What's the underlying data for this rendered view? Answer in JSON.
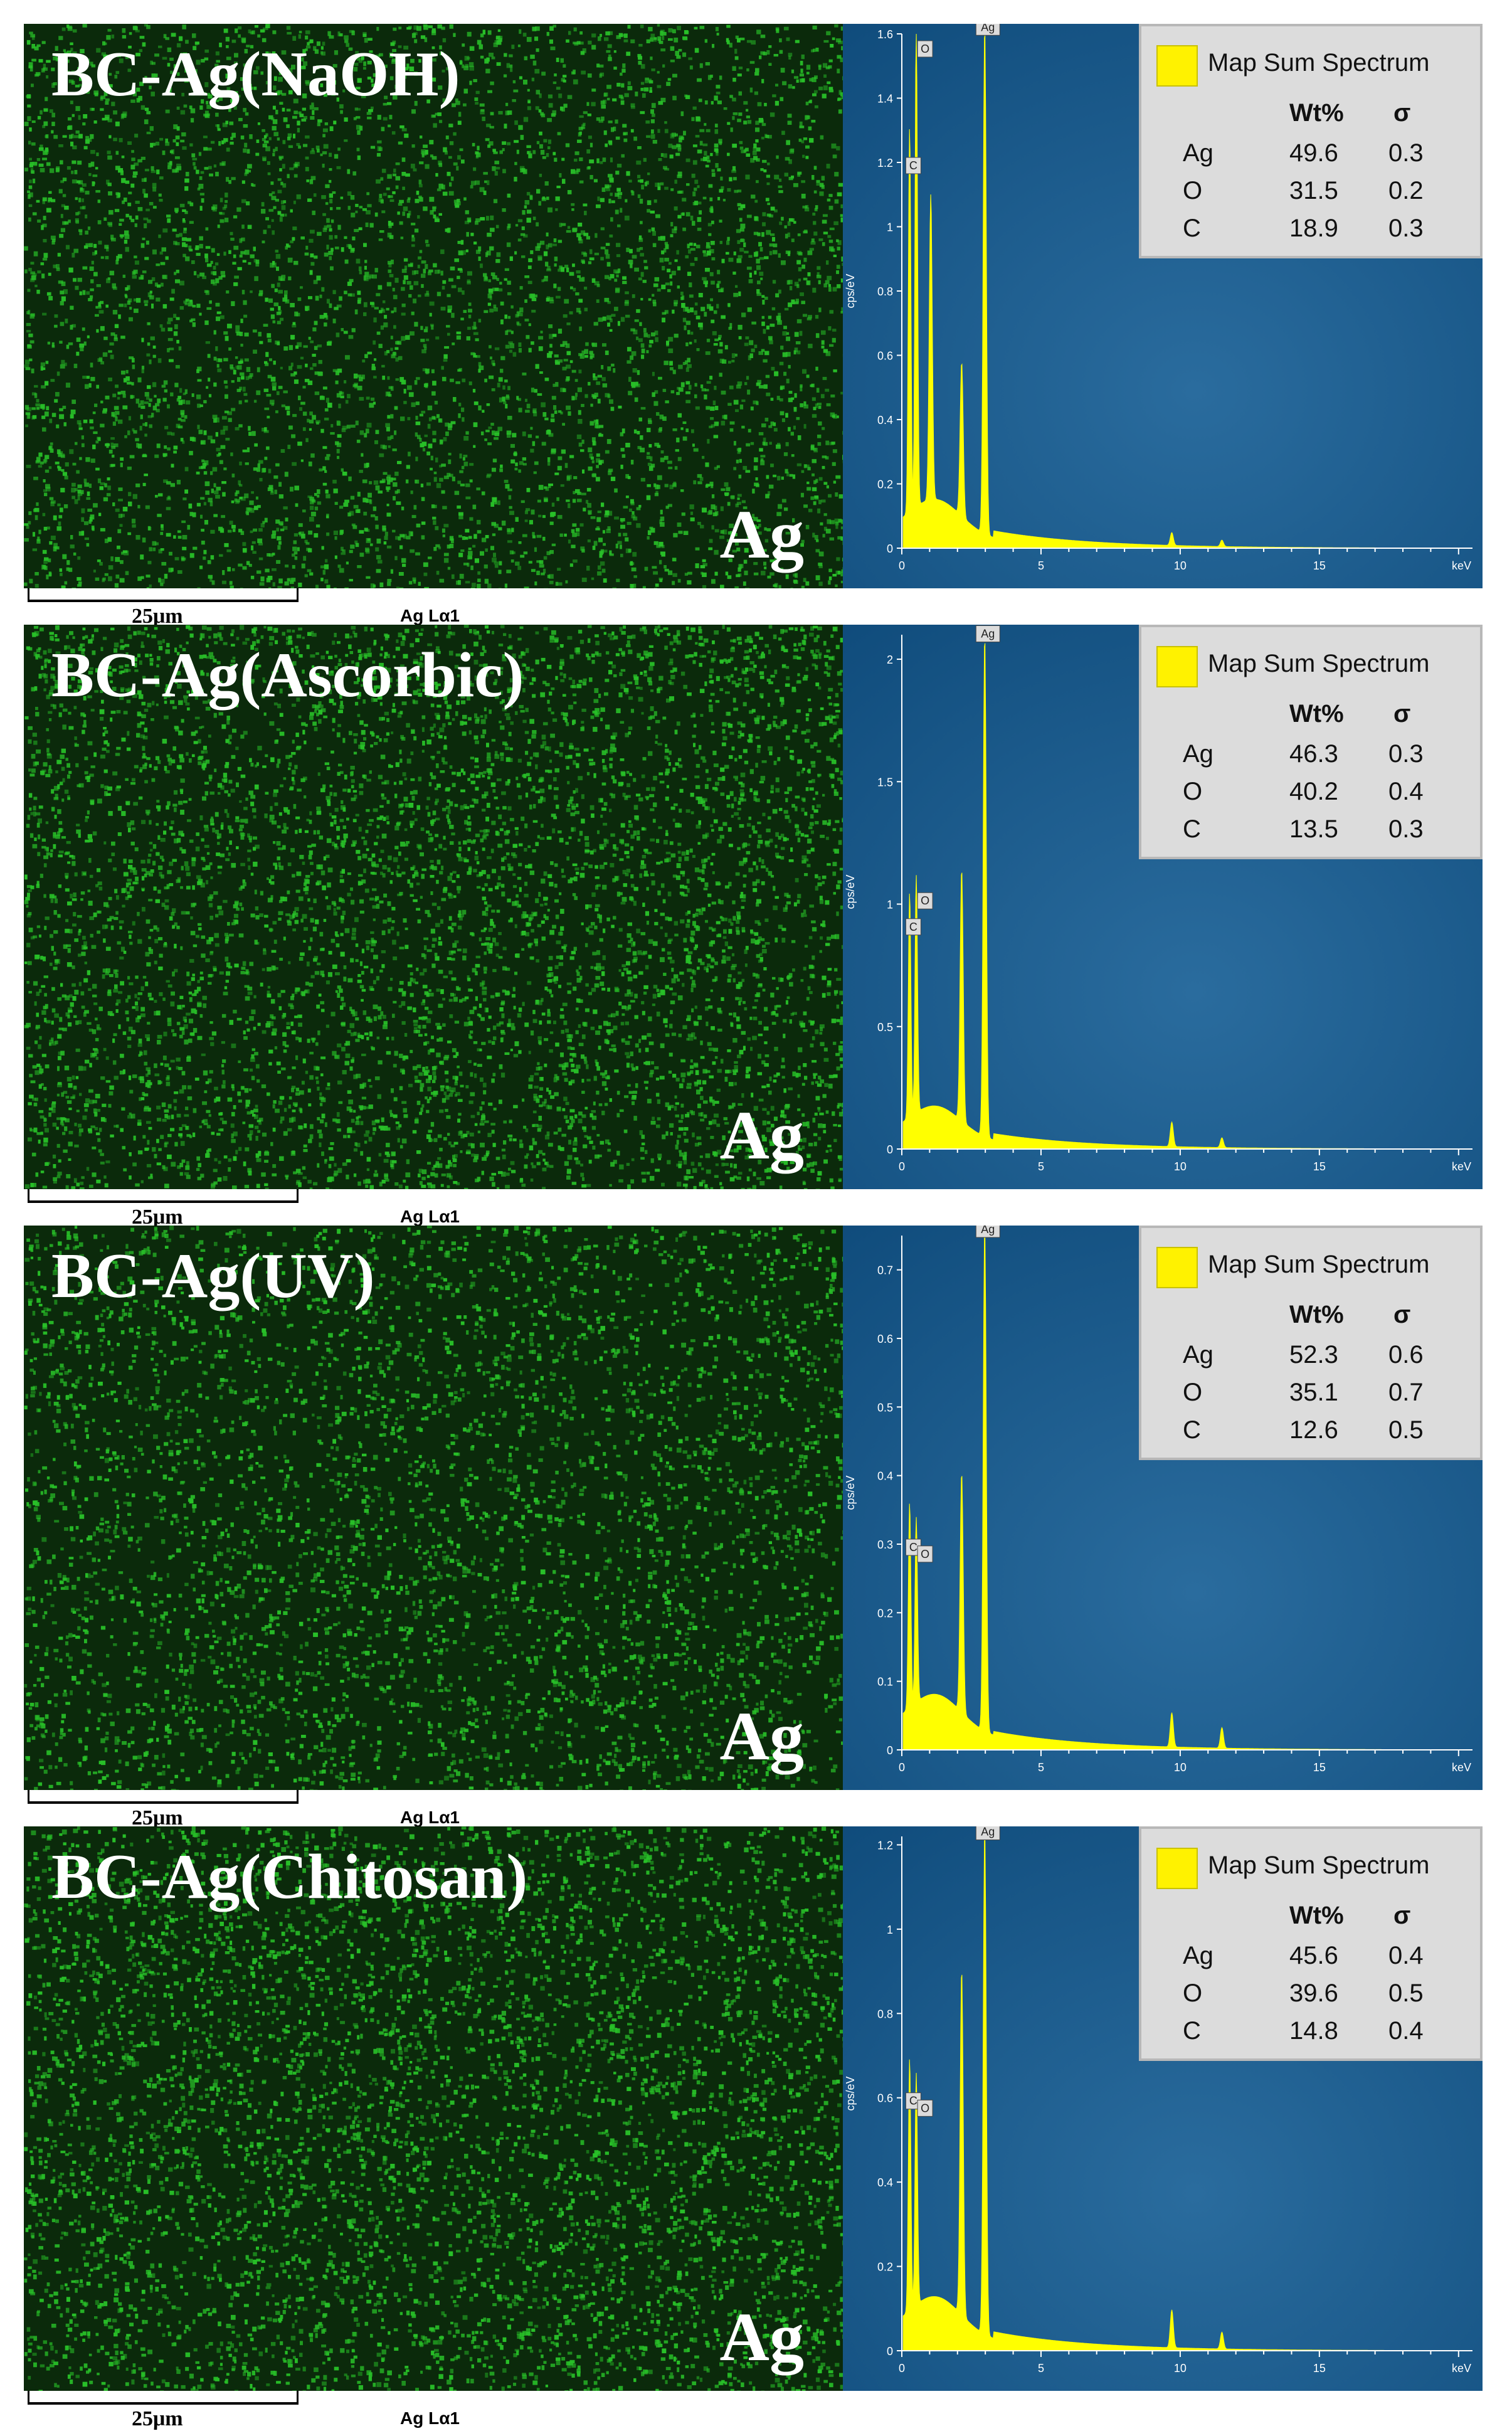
{
  "legend_title": "Map Sum Spectrum",
  "legend_headers": {
    "wt": "Wt%",
    "sigma": "σ"
  },
  "scale_label": "25μm",
  "line_label": "Ag Lα1",
  "map_element": "Ag",
  "axis_ylabel": "cps/eV",
  "axis_unit": "keV",
  "colors": {
    "map_green": "#28c028",
    "map_bg": "#0b2a0b",
    "spectrum_bg": "#0e4a7a",
    "spectrum_fill": "#ffff00",
    "legend_bg": "#dcdcdc"
  },
  "panels": [
    {
      "title": "BC-Ag(NaOH)",
      "rows": [
        {
          "el": "Ag",
          "wt": "49.6",
          "sigma": "0.3"
        },
        {
          "el": "O",
          "wt": "31.5",
          "sigma": "0.2"
        },
        {
          "el": "C",
          "wt": "18.9",
          "sigma": "0.3"
        }
      ]
    },
    {
      "title": "BC-Ag(Ascorbic)",
      "rows": [
        {
          "el": "Ag",
          "wt": "46.3",
          "sigma": "0.3"
        },
        {
          "el": "O",
          "wt": "40.2",
          "sigma": "0.4"
        },
        {
          "el": "C",
          "wt": "13.5",
          "sigma": "0.3"
        }
      ]
    },
    {
      "title": "BC-Ag(UV)",
      "rows": [
        {
          "el": "Ag",
          "wt": "52.3",
          "sigma": "0.6"
        },
        {
          "el": "O",
          "wt": "35.1",
          "sigma": "0.7"
        },
        {
          "el": "C",
          "wt": "12.6",
          "sigma": "0.5"
        }
      ]
    },
    {
      "title": "BC-Ag(Chitosan)",
      "rows": [
        {
          "el": "Ag",
          "wt": "45.6",
          "sigma": "0.4"
        },
        {
          "el": "O",
          "wt": "39.6",
          "sigma": "0.5"
        },
        {
          "el": "C",
          "wt": "14.8",
          "sigma": "0.4"
        }
      ]
    }
  ],
  "chart_data": [
    {
      "type": "area",
      "title": "BC-Ag(NaOH)",
      "xlabel": "keV",
      "ylabel": "cps/eV",
      "xlim": [
        0,
        20.5
      ],
      "ylim": [
        0,
        1.6
      ],
      "xticks": [
        "0",
        "5",
        "10",
        "15"
      ],
      "xtick_values": [
        0,
        5,
        10,
        15
      ],
      "yticks": [
        "0",
        "0.2",
        "0.4",
        "0.6",
        "0.8",
        "1",
        "1.2",
        "1.4",
        "1.6"
      ],
      "ytick_values": [
        0,
        0.2,
        0.4,
        0.6,
        0.8,
        1,
        1.2,
        1.4,
        1.6
      ],
      "peaks": [
        {
          "x": 0.28,
          "y": 1.2,
          "label": "C"
        },
        {
          "x": 0.52,
          "y": 1.52,
          "label": "O"
        },
        {
          "x": 1.04,
          "y": 0.95,
          "label": ""
        },
        {
          "x": 2.15,
          "y": 0.48,
          "label": ""
        },
        {
          "x": 2.98,
          "y": 1.58,
          "label": "Ag"
        },
        {
          "x": 9.7,
          "y": 0.04,
          "label": ""
        },
        {
          "x": 11.5,
          "y": 0.02,
          "label": ""
        }
      ],
      "baseline": 0.12
    },
    {
      "type": "area",
      "title": "BC-Ag(Ascorbic)",
      "xlabel": "keV",
      "ylabel": "cps/eV",
      "xlim": [
        0,
        20.5
      ],
      "ylim": [
        0,
        2.1
      ],
      "xticks": [
        "0",
        "5",
        "10",
        "15"
      ],
      "xtick_values": [
        0,
        5,
        10,
        15
      ],
      "yticks": [
        "0",
        "0.5",
        "1",
        "1.5",
        "2"
      ],
      "ytick_values": [
        0,
        0.5,
        1,
        1.5,
        2
      ],
      "peaks": [
        {
          "x": 0.28,
          "y": 0.92,
          "label": "C"
        },
        {
          "x": 0.52,
          "y": 0.97,
          "label": "O"
        },
        {
          "x": 2.15,
          "y": 1.03,
          "label": ""
        },
        {
          "x": 2.98,
          "y": 2.05,
          "label": "Ag"
        },
        {
          "x": 9.7,
          "y": 0.1,
          "label": ""
        },
        {
          "x": 11.5,
          "y": 0.04,
          "label": ""
        }
      ],
      "baseline": 0.14
    },
    {
      "type": "area",
      "title": "BC-Ag(UV)",
      "xlabel": "keV",
      "ylabel": "cps/eV",
      "xlim": [
        0,
        20.5
      ],
      "ylim": [
        0,
        0.75
      ],
      "xticks": [
        "0",
        "5",
        "10",
        "15"
      ],
      "xtick_values": [
        0,
        5,
        10,
        15
      ],
      "yticks": [
        "0",
        "0.1",
        "0.2",
        "0.3",
        "0.4",
        "0.5",
        "0.6",
        "0.7"
      ],
      "ytick_values": [
        0,
        0.1,
        0.2,
        0.3,
        0.4,
        0.5,
        0.6,
        0.7
      ],
      "peaks": [
        {
          "x": 0.28,
          "y": 0.3,
          "label": "C"
        },
        {
          "x": 0.52,
          "y": 0.27,
          "label": "O"
        },
        {
          "x": 2.15,
          "y": 0.35,
          "label": ""
        },
        {
          "x": 2.98,
          "y": 0.74,
          "label": "Ag"
        },
        {
          "x": 9.7,
          "y": 0.05,
          "label": ""
        },
        {
          "x": 11.5,
          "y": 0.03,
          "label": ""
        }
      ],
      "baseline": 0.06
    },
    {
      "type": "area",
      "title": "BC-Ag(Chitosan)",
      "xlabel": "keV",
      "ylabel": "cps/eV",
      "xlim": [
        0,
        20.5
      ],
      "ylim": [
        0,
        1.22
      ],
      "xticks": [
        "0",
        "5",
        "10",
        "15"
      ],
      "xtick_values": [
        0,
        5,
        10,
        15
      ],
      "yticks": [
        "0",
        "0.2",
        "0.4",
        "0.6",
        "0.8",
        "1",
        "1.2"
      ],
      "ytick_values": [
        0,
        0.2,
        0.4,
        0.6,
        0.8,
        1,
        1.2
      ],
      "peaks": [
        {
          "x": 0.28,
          "y": 0.6,
          "label": "C"
        },
        {
          "x": 0.52,
          "y": 0.55,
          "label": "O"
        },
        {
          "x": 2.15,
          "y": 0.82,
          "label": ""
        },
        {
          "x": 2.98,
          "y": 1.2,
          "label": "Ag"
        },
        {
          "x": 9.7,
          "y": 0.09,
          "label": ""
        },
        {
          "x": 11.5,
          "y": 0.04,
          "label": ""
        }
      ],
      "baseline": 0.1
    }
  ]
}
